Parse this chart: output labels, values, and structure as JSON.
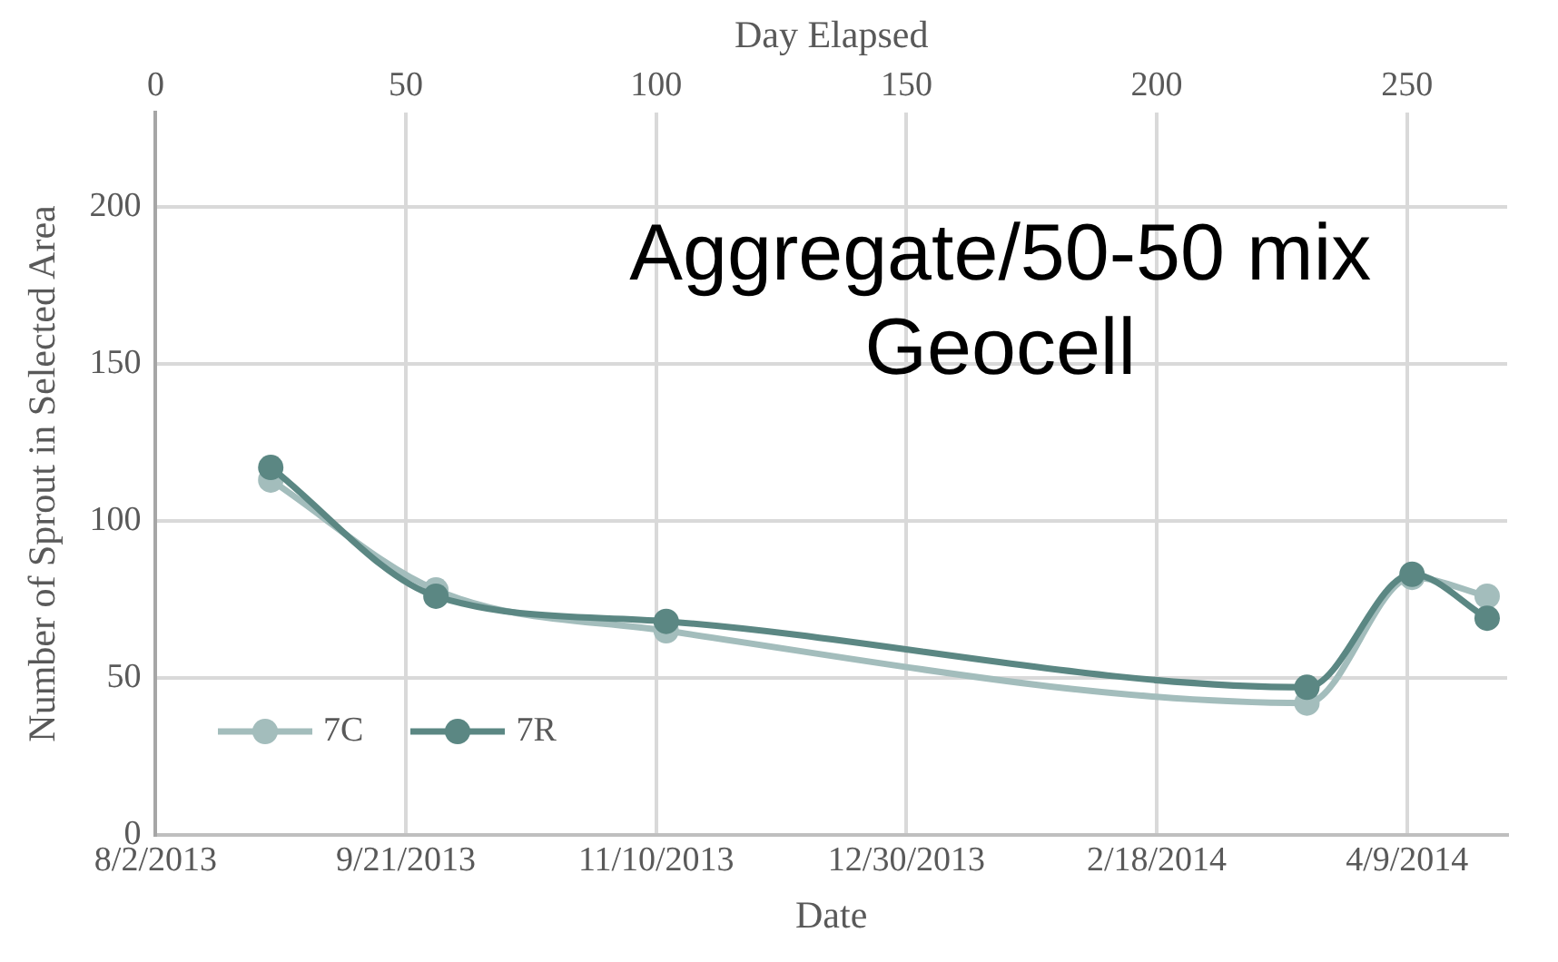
{
  "chart_data": {
    "type": "line",
    "title": "Aggregate/50-50 mix Geocell",
    "xlabel": "Date",
    "x2label": "Day Elapsed",
    "ylabel": "Number of Sprout in Selected Area",
    "x": [
      "2013-08-25",
      "2013-09-27",
      "2013-11-12",
      "2014-03-20",
      "2014-04-10",
      "2014-04-25"
    ],
    "series": [
      {
        "name": "7C",
        "color": "#a3bdbc",
        "values": [
          113,
          78,
          65,
          42,
          82,
          76
        ]
      },
      {
        "name": "7R",
        "color": "#5b8783",
        "values": [
          117,
          76,
          68,
          47,
          83,
          69
        ]
      }
    ],
    "xlim": [
      "2013-08-02",
      "2014-04-29"
    ],
    "xticks": [
      {
        "value": "2013-08-02",
        "label": "8/2/2013"
      },
      {
        "value": "2013-09-21",
        "label": "9/21/2013"
      },
      {
        "value": "2013-11-10",
        "label": "11/10/2013"
      },
      {
        "value": "2013-12-30",
        "label": "12/30/2013"
      },
      {
        "value": "2014-02-18",
        "label": "2/18/2014"
      },
      {
        "value": "2014-04-09",
        "label": "4/9/2014"
      }
    ],
    "x2lim": [
      0,
      270
    ],
    "x2ticks": [
      0,
      50,
      100,
      150,
      200,
      250
    ],
    "ylim": [
      0,
      230
    ],
    "yticks": [
      0,
      50,
      100,
      150,
      200
    ],
    "grid": true,
    "legend": "bottom left",
    "marker": "circle",
    "line_style": "solid"
  }
}
